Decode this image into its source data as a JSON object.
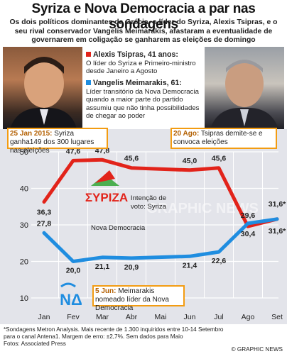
{
  "header": {
    "title": "Syriza e Nova Democracia a par nas sondagens",
    "subtitle": "Os dois políticos dominantes da Grécia, o líder do Syriza, Alexis Tsipras, e o seu rival conservador Vangelis Meimarakis, afastaram a eventualidade de governarem em coligação se ganharem as eleições de domingo"
  },
  "profiles": [
    {
      "name": "Alexis Tsipras, 41 anos:",
      "text": "O líder do Syriza e Primeiro-ministro desde Janeiro a Agosto",
      "color": "#e2231a"
    },
    {
      "name": "Vangelis Meimarakis, 61:",
      "text": "Líder transitório da Nova Democracia quando a maior parte do partido assumiu que não tinha possibilidades de chegar ao poder",
      "color": "#1f8de0"
    }
  ],
  "callouts": {
    "jan": {
      "date": "25 Jan 2015:",
      "text": "Syriza ganha149 dos 300 lugares nas eleições"
    },
    "aug": {
      "date": "20 Ago:",
      "text": "Tsipras demite-se e convoca eleições"
    },
    "jun": {
      "date": "5 Jun:",
      "text": "Meimarakis nomeado líder da Nova Democracia"
    }
  },
  "labels": {
    "intention": "Intenção de voto: Syriza",
    "nd": "Nova Democracia",
    "syriza_logo": "ΣΥΡΙΖΑ",
    "nd_logo": "ΝΔ",
    "watermark": "GRAPHIC NEWS"
  },
  "footnote": "*Sondagens Metron Analysis. Mais recente de 1.300 inquiridos entre 10-14 Setembro para o canal Antena1. Margem de erro: ±2,7%. Sem dados para Maio",
  "source": "Fotos: Associated Press",
  "credit": "© GRAPHIC NEWS",
  "chart_data": {
    "type": "line",
    "title": "",
    "categories": [
      "Jan",
      "Fev",
      "Mar",
      "Abr",
      "Mai",
      "Jun",
      "Jul",
      "Ago",
      "Set"
    ],
    "ylim": [
      10,
      50
    ],
    "yticks": [
      10,
      20,
      30,
      40,
      50
    ],
    "grid": true,
    "series": [
      {
        "name": "Syriza",
        "color": "#e2231a",
        "values": [
          36.3,
          47.6,
          47.8,
          45.6,
          null,
          45.0,
          45.6,
          29.6,
          31.6
        ],
        "labels": [
          "36,3",
          "47,6",
          "47,8",
          "45,6",
          "",
          "45,0",
          "45,6",
          "29,6",
          "31,6*"
        ]
      },
      {
        "name": "Nova Democracia",
        "color": "#1f8de0",
        "values": [
          27.8,
          20.0,
          21.1,
          20.9,
          null,
          21.4,
          22.6,
          30.4,
          31.6
        ],
        "labels": [
          "27,8",
          "20,0",
          "21,1",
          "20,9",
          "",
          "21,4",
          "22,6",
          "30,4",
          "31,6*"
        ]
      }
    ]
  }
}
